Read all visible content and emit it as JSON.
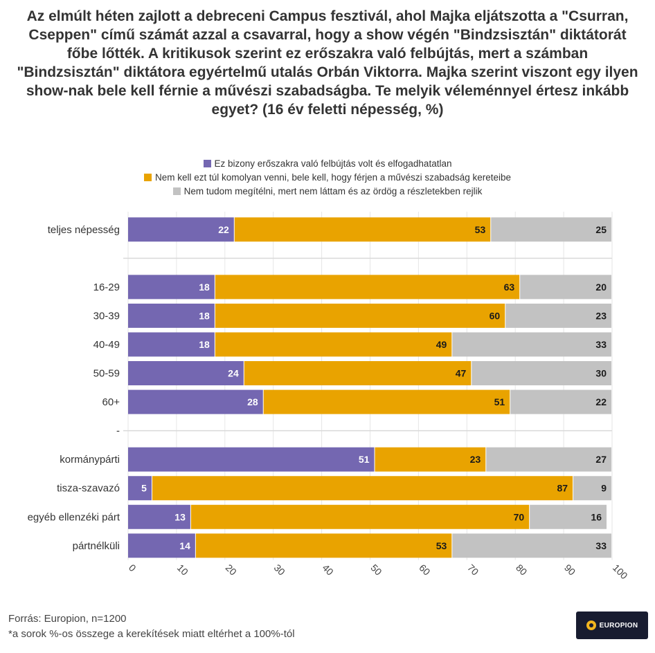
{
  "chart_data": {
    "type": "bar",
    "orientation": "horizontal",
    "stacked": true,
    "title": "Az elmúlt héten zajlott a debreceni Campus fesztivál, ahol Majka eljátszotta a \"Csurran, Cseppen\" című számát azzal a csavarral, hogy a show végén \"Bindzsisztán\" diktátorát főbe lőtték. A kritikusok szerint ez erőszakra való felbújtás, mert a számban \"Bindzsisztán\" diktátora egyértelmű utalás Orbán Viktorra. Majka szerint viszont egy ilyen show-nak bele kell férnie a művészi szabadságba. Te melyik véleménnyel értesz inkább egyet? (16 év feletti népesség, %)",
    "categories": [
      "teljes népesség",
      "",
      "16-29",
      "30-39",
      "40-49",
      "50-59",
      "60+",
      "-",
      "kormánypárti",
      "tisza-szavazó",
      "egyéb ellenzéki párt",
      "pártnélküli"
    ],
    "series": [
      {
        "name": "Ez bizony erőszakra való felbújtás volt és elfogadhatatlan",
        "color": "#7467b1",
        "values": [
          22,
          null,
          18,
          18,
          18,
          24,
          28,
          null,
          51,
          5,
          13,
          14
        ]
      },
      {
        "name": "Nem kell ezt túl komolyan venni, bele kell, hogy férjen a művészi szabadság kereteibe",
        "color": "#e9a300",
        "values": [
          53,
          null,
          63,
          60,
          49,
          47,
          51,
          null,
          23,
          87,
          70,
          53
        ]
      },
      {
        "name": "Nem tudom megítélni, mert nem láttam és az ördög a részletekben rejlik",
        "color": "#c2c2c2",
        "values": [
          25,
          null,
          20,
          23,
          33,
          30,
          22,
          null,
          27,
          9,
          16,
          33
        ]
      }
    ],
    "xlim": [
      0,
      100
    ],
    "xticks": [
      "0",
      "10",
      "20",
      "30",
      "40",
      "50",
      "60",
      "70",
      "80",
      "90",
      "100"
    ],
    "grid": true,
    "legend": "top-center"
  },
  "footer": {
    "source": "Forrás: Europion, n=1200",
    "note": "*a sorok %-os összege a kerekítések miatt eltérhet a 100%-tól"
  },
  "logo": {
    "text": "EUROPION"
  }
}
